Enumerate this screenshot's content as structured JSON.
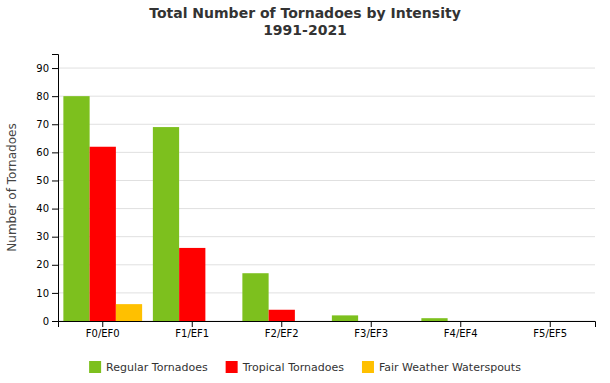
{
  "chart_data": {
    "type": "bar",
    "title": "Total Number of Tornadoes by Intensity\n1991-2021",
    "categories": [
      "F0/EF0",
      "F1/EF1",
      "F2/EF2",
      "F3/EF3",
      "F4/EF4",
      "F5/EF5"
    ],
    "series": [
      {
        "name": "Regular Tornadoes",
        "color": "#7DC01E",
        "values": [
          80,
          69,
          17,
          2,
          1,
          0
        ]
      },
      {
        "name": "Tropical Tornadoes",
        "color": "#FF0000",
        "values": [
          62,
          26,
          4,
          0,
          0,
          0
        ]
      },
      {
        "name": "Fair Weather Waterspouts",
        "color": "#FFC000",
        "values": [
          6,
          0,
          0,
          0,
          0,
          0
        ]
      }
    ],
    "ylabel": "Number of Tornadoes",
    "ylim": [
      0,
      95
    ],
    "yticks": [
      0,
      10,
      20,
      30,
      40,
      50,
      60,
      70,
      80,
      90
    ],
    "grid": true,
    "legend": "bottom"
  }
}
